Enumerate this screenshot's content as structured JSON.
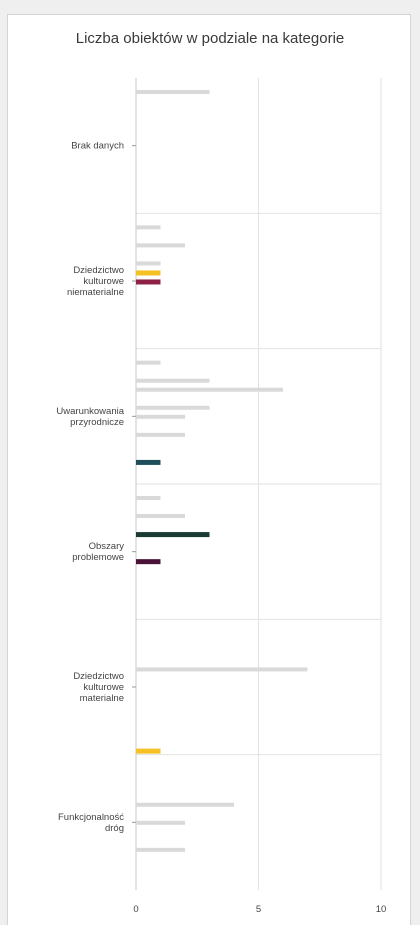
{
  "chart_data": {
    "type": "bar",
    "title": "Liczba obiektów w podziale na kategorie",
    "xlim": [
      0,
      10
    ],
    "x_ticks": [
      "0",
      "5",
      "10"
    ],
    "grid": true,
    "categories": [
      {
        "label": [
          "Brak danych"
        ],
        "bars": [
          {
            "value": 3,
            "color": "#d9d9d9"
          }
        ]
      },
      {
        "label": [
          "Dziedzictwo",
          "kulturowe",
          "niematerialne"
        ],
        "bars": [
          {
            "value": 1,
            "color": "#d9d9d9"
          },
          {
            "value": 2,
            "color": "#d9d9d9"
          },
          {
            "value": 1,
            "color": "#d9d9d9"
          },
          {
            "value": 1,
            "color": "#f5c024"
          },
          {
            "value": 1,
            "color": "#8c2045"
          }
        ]
      },
      {
        "label": [
          "Uwarunkowania",
          "przyrodnicze"
        ],
        "bars": [
          {
            "value": 1,
            "color": "#d9d9d9"
          },
          {
            "value": 3,
            "color": "#d9d9d9"
          },
          {
            "value": 6,
            "color": "#d9d9d9"
          },
          {
            "value": 3,
            "color": "#d9d9d9"
          },
          {
            "value": 2,
            "color": "#d9d9d9"
          },
          {
            "value": 2,
            "color": "#d9d9d9"
          },
          {
            "value": 1,
            "color": "#1d4e5a"
          }
        ]
      },
      {
        "label": [
          "Obszary",
          "problemowe"
        ],
        "bars": [
          {
            "value": 1,
            "color": "#d9d9d9"
          },
          {
            "value": 2,
            "color": "#d9d9d9"
          },
          {
            "value": 3,
            "color": "#1a3a34"
          },
          {
            "value": 1,
            "color": "#4a1236"
          }
        ]
      },
      {
        "label": [
          "Dziedzictwo",
          "kulturowe",
          "materialne"
        ],
        "bars": [
          {
            "value": 7,
            "color": "#d9d9d9"
          },
          {
            "value": 1,
            "color": "#f5c024"
          }
        ]
      },
      {
        "label": [
          "Funkcjonalność",
          "dróg"
        ],
        "bars": [
          {
            "value": 4,
            "color": "#d9d9d9"
          },
          {
            "value": 2,
            "color": "#d9d9d9"
          },
          {
            "value": 2,
            "color": "#d9d9d9"
          }
        ]
      }
    ]
  }
}
